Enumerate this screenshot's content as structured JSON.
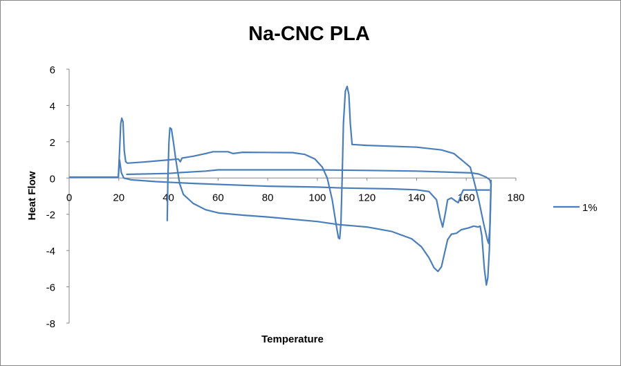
{
  "chart_data": {
    "type": "line",
    "title": "Na-CNC PLA",
    "xlabel": "Temperature",
    "ylabel": "Heat Flow",
    "xlim": [
      0,
      180
    ],
    "ylim": [
      -8,
      6
    ],
    "xticks": [
      0,
      20,
      40,
      60,
      80,
      100,
      120,
      140,
      160,
      180
    ],
    "yticks": [
      6,
      4,
      2,
      0,
      -2,
      -4,
      -6,
      -8
    ],
    "grid": false,
    "legend_position": "right",
    "series": [
      {
        "name": "1%",
        "color": "#4a7ebb",
        "segments": [
          [
            [
              0,
              0.05
            ],
            [
              19.8,
              0.05
            ],
            [
              20.3,
              1.5
            ],
            [
              20.8,
              3.0
            ],
            [
              21.2,
              3.3
            ],
            [
              21.7,
              3.1
            ],
            [
              22.2,
              1.5
            ],
            [
              22.8,
              0.9
            ],
            [
              23.5,
              0.82
            ],
            [
              30,
              0.88
            ],
            [
              40,
              1.0
            ],
            [
              44,
              1.05
            ],
            [
              44.8,
              0.9
            ],
            [
              45.5,
              1.1
            ],
            [
              50,
              1.2
            ],
            [
              55,
              1.35
            ],
            [
              58,
              1.45
            ],
            [
              64,
              1.45
            ],
            [
              66,
              1.35
            ],
            [
              70,
              1.42
            ],
            [
              90,
              1.4
            ],
            [
              95,
              1.3
            ],
            [
              99,
              1.05
            ],
            [
              102,
              0.6
            ],
            [
              104,
              0
            ],
            [
              106,
              -1.2
            ],
            [
              107.5,
              -2.5
            ],
            [
              108.5,
              -3.3
            ],
            [
              109,
              -3.35
            ],
            [
              109.5,
              -2.5
            ],
            [
              110,
              0
            ],
            [
              110.5,
              3.0
            ],
            [
              111.3,
              4.8
            ],
            [
              112,
              5.05
            ],
            [
              112.7,
              4.6
            ],
            [
              113.3,
              3.0
            ],
            [
              114,
              1.85
            ],
            [
              120,
              1.8
            ],
            [
              140,
              1.7
            ],
            [
              150,
              1.55
            ],
            [
              155,
              1.35
            ],
            [
              159,
              0.9
            ],
            [
              161.6,
              0.6
            ],
            [
              163,
              -0.1
            ],
            [
              165,
              -1.2
            ],
            [
              167,
              -2.5
            ],
            [
              168.5,
              -3.4
            ],
            [
              169,
              -3.6
            ],
            [
              169.5,
              -2.8
            ],
            [
              170,
              -0.1
            ]
          ],
          [
            [
              170,
              -0.35
            ],
            [
              169.5,
              -0.1
            ],
            [
              168,
              0.05
            ],
            [
              165,
              0.22
            ],
            [
              162,
              0.28
            ],
            [
              140,
              0.38
            ],
            [
              120,
              0.42
            ],
            [
              100,
              0.45
            ],
            [
              60,
              0.45
            ],
            [
              55,
              0.38
            ],
            [
              45,
              0.3
            ],
            [
              40,
              0.25
            ],
            [
              23,
              0.2
            ]
          ],
          [
            [
              19.8,
              0.05
            ],
            [
              20.3,
              1.0
            ],
            [
              21,
              0.3
            ],
            [
              22,
              0
            ],
            [
              25,
              -0.1
            ],
            [
              35,
              -0.2
            ],
            [
              50,
              -0.3
            ],
            [
              60,
              -0.35
            ],
            [
              80,
              -0.45
            ],
            [
              100,
              -0.5
            ],
            [
              110,
              -0.55
            ],
            [
              130,
              -0.6
            ],
            [
              140,
              -0.65
            ],
            [
              145,
              -0.75
            ],
            [
              148,
              -1.2
            ],
            [
              149.5,
              -2.2
            ],
            [
              150.5,
              -2.7
            ],
            [
              151.5,
              -2.0
            ],
            [
              152.5,
              -1.2
            ],
            [
              154,
              -1.1
            ],
            [
              156,
              -1.3
            ],
            [
              156.8,
              -1.36
            ],
            [
              158,
              -0.9
            ],
            [
              158.8,
              -0.66
            ],
            [
              165,
              -0.66
            ],
            [
              169.5,
              -0.66
            ]
          ],
          [
            [
              39.5,
              -2.38
            ],
            [
              39.8,
              0
            ],
            [
              40.2,
              2.0
            ],
            [
              40.6,
              2.77
            ],
            [
              41.2,
              2.7
            ],
            [
              42,
              2.0
            ],
            [
              43,
              1.0
            ],
            [
              44.5,
              -0.3
            ],
            [
              46,
              -0.9
            ],
            [
              50,
              -1.4
            ],
            [
              55,
              -1.75
            ],
            [
              60.4,
              -1.93
            ],
            [
              70,
              -2.05
            ],
            [
              80,
              -2.15
            ],
            [
              100,
              -2.4
            ],
            [
              108.7,
              -2.57
            ],
            [
              120,
              -2.7
            ],
            [
              130,
              -2.95
            ],
            [
              138,
              -3.35
            ],
            [
              142,
              -3.8
            ],
            [
              145,
              -4.4
            ],
            [
              147,
              -4.95
            ],
            [
              148.6,
              -5.15
            ],
            [
              150,
              -4.9
            ],
            [
              151,
              -4.3
            ],
            [
              152.5,
              -3.4
            ],
            [
              154,
              -3.1
            ],
            [
              156,
              -3.05
            ],
            [
              158,
              -2.85
            ],
            [
              160.9,
              -2.75
            ],
            [
              163,
              -2.65
            ],
            [
              164.8,
              -2.7
            ],
            [
              165.6,
              -2.65
            ],
            [
              166.3,
              -3.2
            ],
            [
              167.3,
              -5.0
            ],
            [
              168.1,
              -5.9
            ],
            [
              168.7,
              -5.5
            ],
            [
              169.3,
              -4.0
            ],
            [
              169.8,
              -1.5
            ],
            [
              170,
              -0.3
            ]
          ]
        ]
      }
    ]
  }
}
